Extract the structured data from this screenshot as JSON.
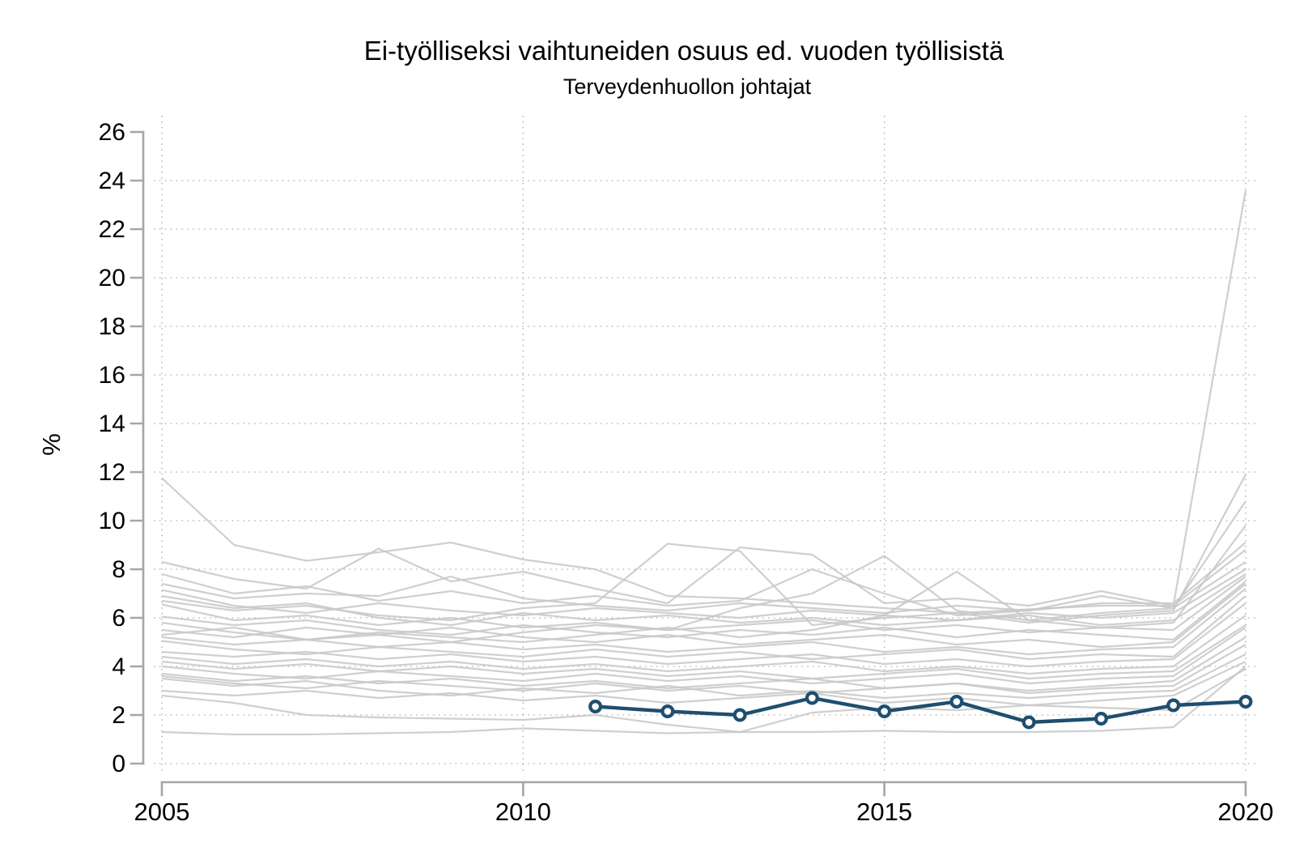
{
  "chart_data": {
    "type": "line",
    "title": "Ei-työlliseksi vaihtuneiden osuus ed. vuoden työllisistä",
    "subtitle": "Terveydenhuollon johtajat",
    "ylabel": "%",
    "xlabel": "",
    "ylim": [
      0,
      26
    ],
    "yticks": [
      0,
      2,
      4,
      6,
      8,
      10,
      12,
      14,
      16,
      18,
      20,
      22,
      24,
      26
    ],
    "xticks": [
      2005,
      2010,
      2015,
      2020
    ],
    "x_range": [
      2005,
      2020
    ],
    "grid": "dotted horizontal at every 2 units and vertical at 5-year marks",
    "legend_position": "none",
    "years": [
      2005,
      2006,
      2007,
      2008,
      2009,
      2010,
      2011,
      2012,
      2013,
      2014,
      2015,
      2016,
      2017,
      2018,
      2019,
      2020
    ],
    "highlight_series": {
      "name": "Terveydenhuollon johtajat",
      "color": "#1f4e6f",
      "marker": "open-circle",
      "years": [
        2011,
        2012,
        2013,
        2014,
        2015,
        2016,
        2017,
        2018,
        2019,
        2020
      ],
      "values": [
        2.35,
        2.15,
        2.0,
        2.7,
        2.15,
        2.55,
        1.7,
        1.85,
        2.4,
        2.55
      ]
    },
    "background_series": {
      "color": "#c8c8c8",
      "lines": [
        [
          11.75,
          9.0,
          8.35,
          8.7,
          9.1,
          8.4,
          8.0,
          6.9,
          6.8,
          6.6,
          6.4,
          6.2,
          6.35,
          6.5,
          6.5,
          23.6
        ],
        [
          6.7,
          6.3,
          6.5,
          6.1,
          5.9,
          6.4,
          6.6,
          9.05,
          8.75,
          5.7,
          6.0,
          6.2,
          5.8,
          6.1,
          6.3,
          11.9
        ],
        [
          5.5,
          5.2,
          5.6,
          5.3,
          5.0,
          5.4,
          5.7,
          5.5,
          6.4,
          7.0,
          8.55,
          6.3,
          5.9,
          6.2,
          6.4,
          10.8
        ],
        [
          5.3,
          5.6,
          5.1,
          5.4,
          5.2,
          5.0,
          5.3,
          5.6,
          5.2,
          5.5,
          6.1,
          7.9,
          5.9,
          5.6,
          5.8,
          9.8
        ],
        [
          7.4,
          6.8,
          7.0,
          6.9,
          7.7,
          6.8,
          6.5,
          6.3,
          6.6,
          6.4,
          6.2,
          6.5,
          6.3,
          6.6,
          6.6,
          9.1
        ],
        [
          8.3,
          7.6,
          7.2,
          8.85,
          7.5,
          7.9,
          7.2,
          6.6,
          8.9,
          8.6,
          6.6,
          6.8,
          6.5,
          7.1,
          6.5,
          8.8
        ],
        [
          7.8,
          7.0,
          7.3,
          6.7,
          7.1,
          6.6,
          6.9,
          6.5,
          6.7,
          8.0,
          7.0,
          6.1,
          6.3,
          6.9,
          6.4,
          8.3
        ],
        [
          7.15,
          6.5,
          6.2,
          6.6,
          6.3,
          6.1,
          6.4,
          6.2,
          6.0,
          6.3,
          6.1,
          5.9,
          6.2,
          6.0,
          6.2,
          8.0
        ],
        [
          6.9,
          6.4,
          6.6,
          6.0,
          5.7,
          6.2,
          5.9,
          6.1,
          5.8,
          6.0,
          5.7,
          5.9,
          6.1,
          5.7,
          5.9,
          7.8
        ],
        [
          6.55,
          5.9,
          6.1,
          5.7,
          6.0,
          5.6,
          5.8,
          5.5,
          5.7,
          5.9,
          5.5,
          5.7,
          5.4,
          5.6,
          5.5,
          7.7
        ],
        [
          6.05,
          5.7,
          5.9,
          5.5,
          5.3,
          5.7,
          5.4,
          5.2,
          5.5,
          5.3,
          5.6,
          5.2,
          5.5,
          5.3,
          5.1,
          7.5
        ],
        [
          5.8,
          5.4,
          5.1,
          5.3,
          5.6,
          5.2,
          5.0,
          5.3,
          4.9,
          5.1,
          5.3,
          4.9,
          5.1,
          4.8,
          5.0,
          7.4
        ],
        [
          5.2,
          4.9,
          5.1,
          4.8,
          5.0,
          4.7,
          4.9,
          4.6,
          4.8,
          5.0,
          4.6,
          4.8,
          4.5,
          4.7,
          4.8,
          7.2
        ],
        [
          5.05,
          4.7,
          4.5,
          4.8,
          4.6,
          4.4,
          4.7,
          4.4,
          4.6,
          4.3,
          4.5,
          4.7,
          4.3,
          4.5,
          4.4,
          6.9
        ],
        [
          4.6,
          4.4,
          4.6,
          4.3,
          4.5,
          4.2,
          4.4,
          4.1,
          4.3,
          4.5,
          4.1,
          4.3,
          4.0,
          4.2,
          4.3,
          6.6
        ],
        [
          4.4,
          4.1,
          4.3,
          4.0,
          4.2,
          3.9,
          4.1,
          3.8,
          4.0,
          4.2,
          3.8,
          4.0,
          3.7,
          3.9,
          4.0,
          6.1
        ],
        [
          4.2,
          3.9,
          4.1,
          3.8,
          4.0,
          3.7,
          3.9,
          3.6,
          3.8,
          3.5,
          3.7,
          3.9,
          3.5,
          3.7,
          3.8,
          5.7
        ],
        [
          4.0,
          3.7,
          3.5,
          3.8,
          3.6,
          3.4,
          3.7,
          3.4,
          3.6,
          3.3,
          3.5,
          3.7,
          3.3,
          3.5,
          3.6,
          5.6
        ],
        [
          3.7,
          3.4,
          3.6,
          3.3,
          3.5,
          3.2,
          3.4,
          3.1,
          3.3,
          3.5,
          3.1,
          3.3,
          3.0,
          3.2,
          3.4,
          5.2
        ],
        [
          3.6,
          3.3,
          3.1,
          3.4,
          3.2,
          3.0,
          3.3,
          3.0,
          3.2,
          2.9,
          3.1,
          3.3,
          2.9,
          3.1,
          3.2,
          4.9
        ],
        [
          3.5,
          3.2,
          3.4,
          3.0,
          2.8,
          3.1,
          2.9,
          3.2,
          2.8,
          3.0,
          2.7,
          2.9,
          2.7,
          2.9,
          3.0,
          4.5
        ],
        [
          3.0,
          2.8,
          3.0,
          2.7,
          2.9,
          2.6,
          2.8,
          2.5,
          2.7,
          2.9,
          2.5,
          2.7,
          2.4,
          2.6,
          2.8,
          4.2
        ],
        [
          2.8,
          2.5,
          2.0,
          1.9,
          1.85,
          1.8,
          2.0,
          1.6,
          1.3,
          2.1,
          2.3,
          2.2,
          2.4,
          2.3,
          2.2,
          3.9
        ],
        [
          1.3,
          1.2,
          1.2,
          1.25,
          1.3,
          1.45,
          1.35,
          1.25,
          1.3,
          1.3,
          1.35,
          1.3,
          1.3,
          1.35,
          1.5,
          4.0
        ]
      ]
    },
    "colors": {
      "highlight": "#1f4e6f",
      "background_lines": "#c8c8c8",
      "axis": "#a6a6a6",
      "grid": "#a8a8a8",
      "text": "#000000",
      "plot_background": "#ffffff"
    }
  }
}
